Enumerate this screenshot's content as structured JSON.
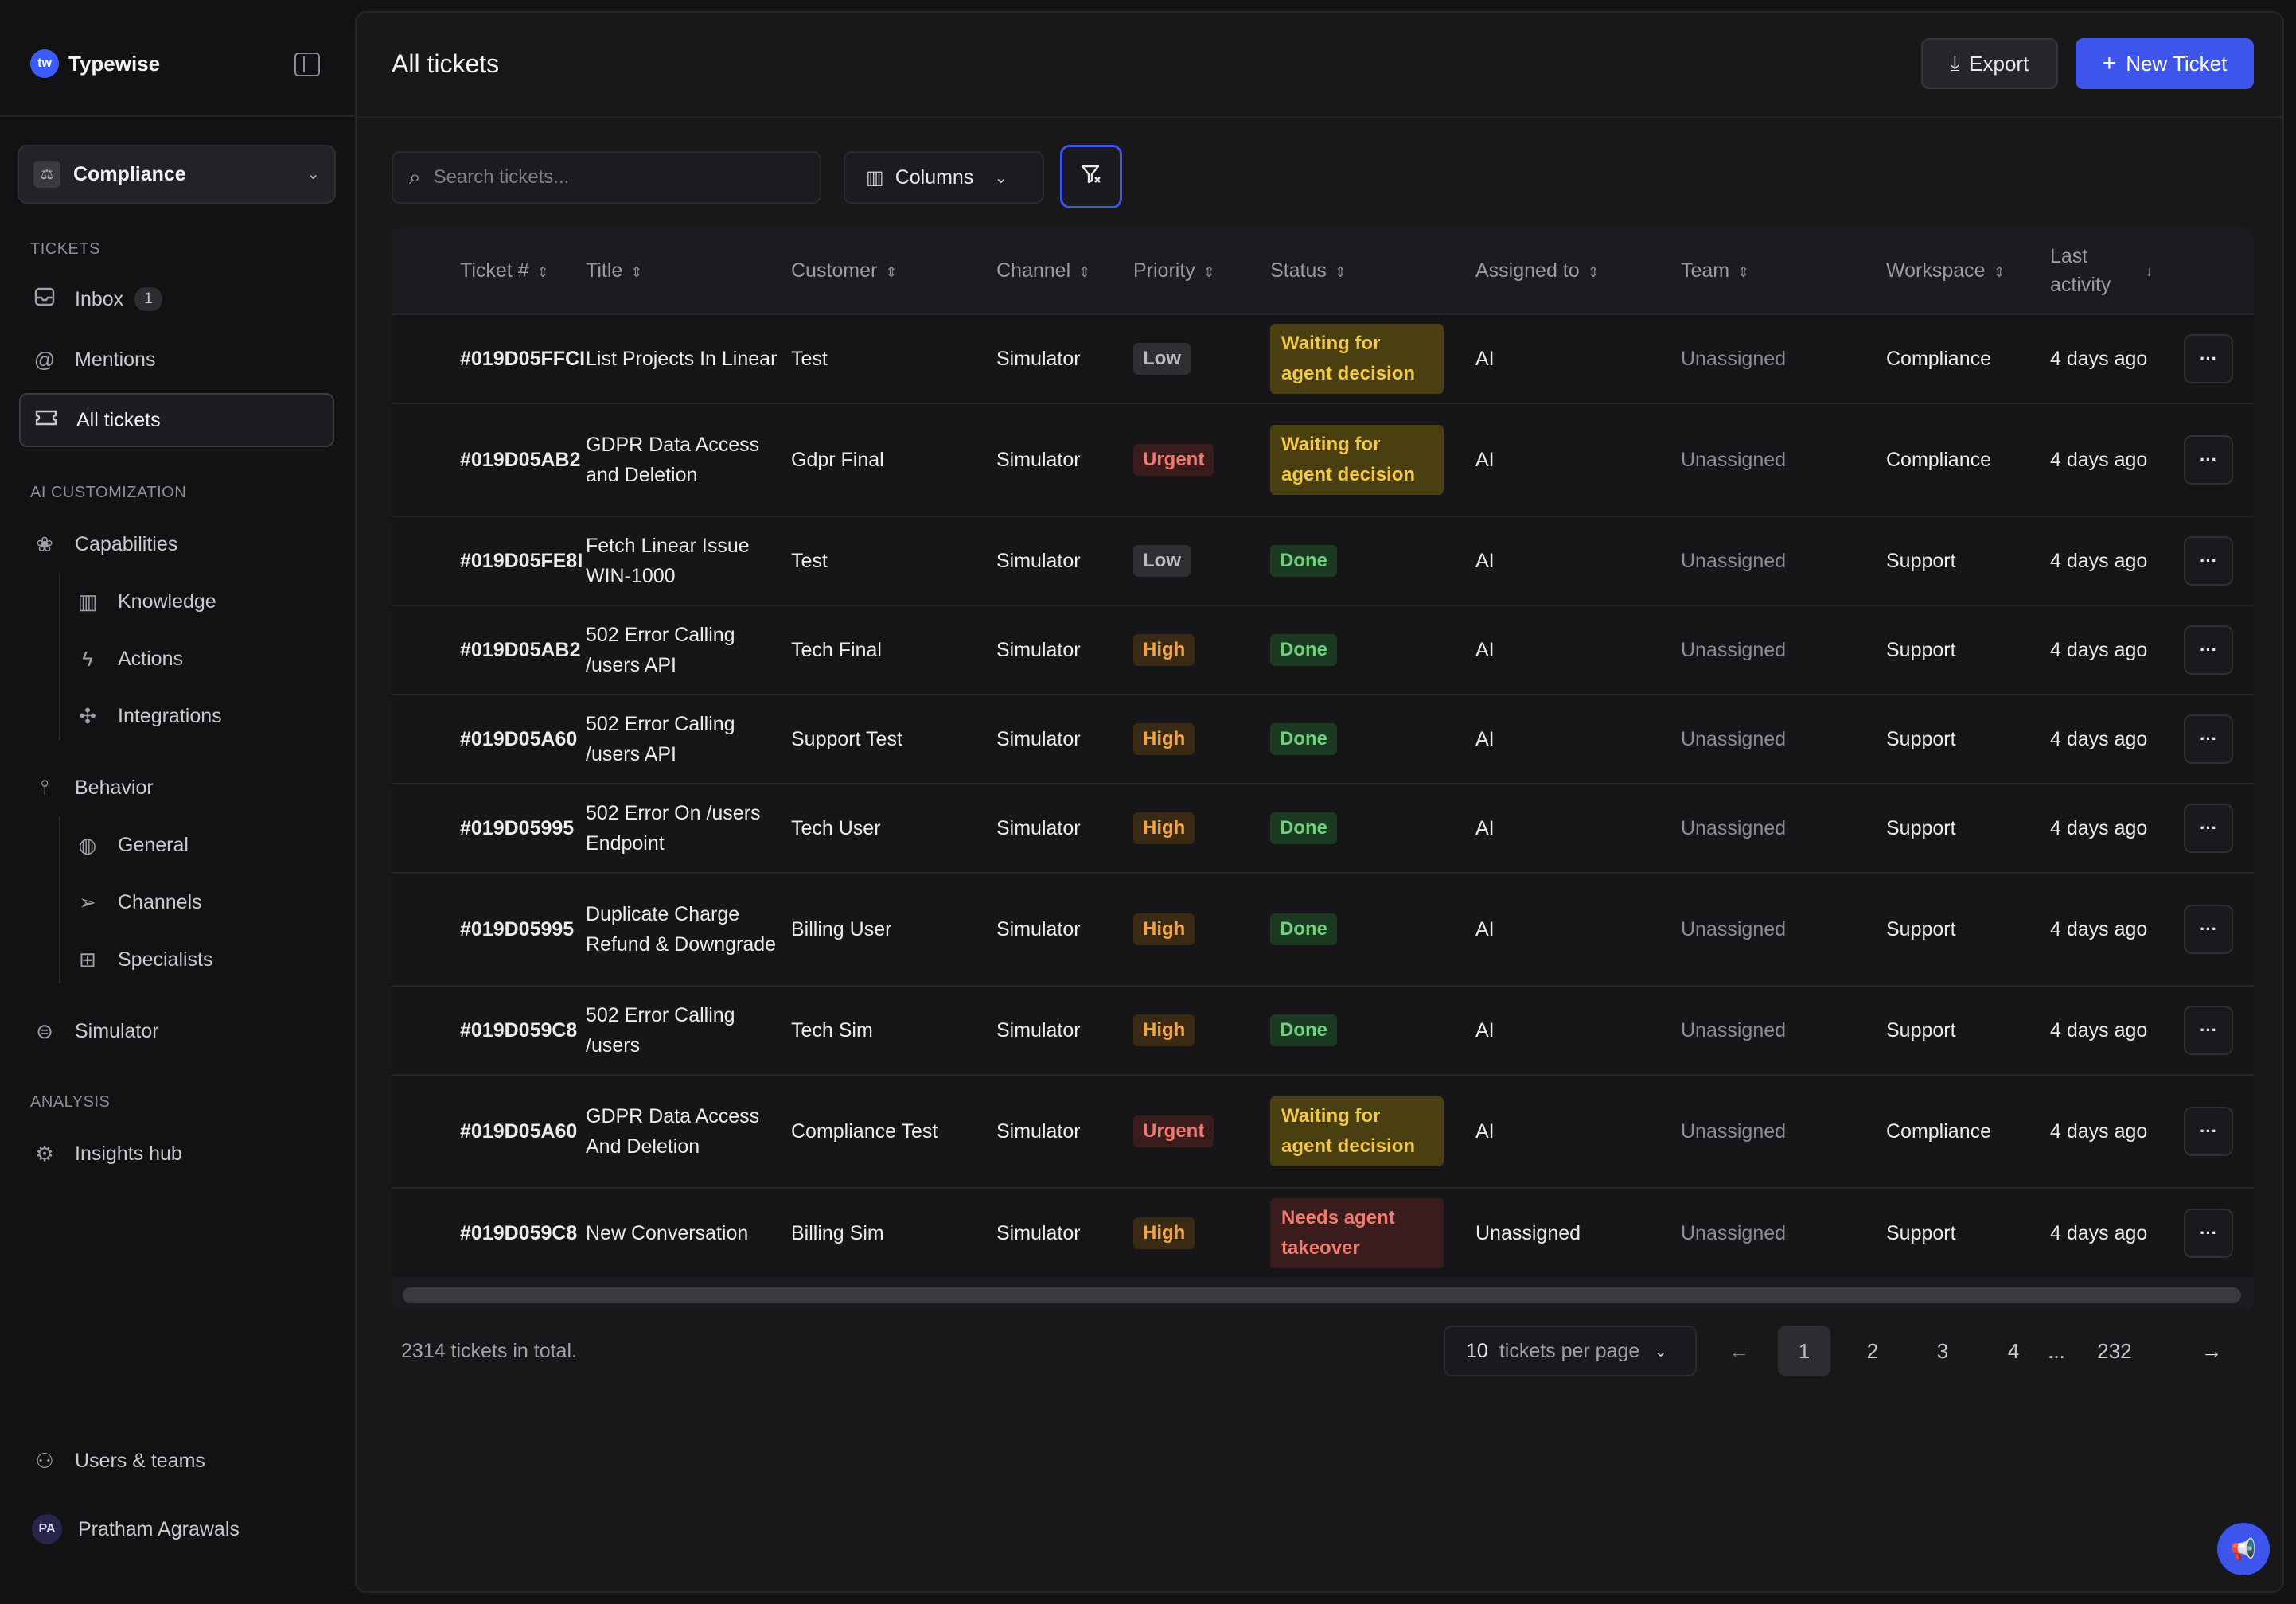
{
  "brand": {
    "name": "Typewise",
    "logo_text": "tw"
  },
  "workspace": {
    "label": "Compliance"
  },
  "sidebar": {
    "tickets_header": "TICKETS",
    "inbox": {
      "label": "Inbox",
      "count": "1"
    },
    "mentions": {
      "label": "Mentions"
    },
    "all_tickets": {
      "label": "All tickets"
    },
    "ai_header": "AI CUSTOMIZATION",
    "capabilities": {
      "label": "Capabilities"
    },
    "knowledge": {
      "label": "Knowledge"
    },
    "actions": {
      "label": "Actions"
    },
    "integrations": {
      "label": "Integrations"
    },
    "behavior": {
      "label": "Behavior"
    },
    "general": {
      "label": "General"
    },
    "channels": {
      "label": "Channels"
    },
    "specialists": {
      "label": "Specialists"
    },
    "simulator": {
      "label": "Simulator"
    },
    "analysis_header": "ANALYSIS",
    "insights": {
      "label": "Insights hub"
    },
    "users_teams": {
      "label": "Users & teams"
    },
    "user": {
      "initials": "PA",
      "name": "Pratham Agrawals"
    }
  },
  "header": {
    "title": "All tickets",
    "export_label": "Export",
    "new_ticket_label": "New Ticket"
  },
  "toolbar": {
    "search_placeholder": "Search tickets...",
    "columns_label": "Columns"
  },
  "table": {
    "headers": {
      "ticket": "Ticket #",
      "title": "Title",
      "customer": "Customer",
      "channel": "Channel",
      "priority": "Priority",
      "status": "Status",
      "assigned": "Assigned to",
      "team": "Team",
      "workspace": "Workspace",
      "last_activity": "Last activity"
    },
    "rows": [
      {
        "id": "#019D05FFCI",
        "title": "List Projects In Linear",
        "customer": "Test",
        "channel": "Simulator",
        "priority": "Low",
        "status": "Waiting for agent decision",
        "assigned": "AI",
        "team": "Unassigned",
        "workspace": "Compliance",
        "last": "4 days ago"
      },
      {
        "id": "#019D05AB2",
        "title": "GDPR Data Access and Deletion",
        "customer": "Gdpr Final",
        "channel": "Simulator",
        "priority": "Urgent",
        "status": "Waiting for agent decision",
        "assigned": "AI",
        "team": "Unassigned",
        "workspace": "Compliance",
        "last": "4 days ago"
      },
      {
        "id": "#019D05FE8I",
        "title": "Fetch Linear Issue WIN-1000",
        "customer": "Test",
        "channel": "Simulator",
        "priority": "Low",
        "status": "Done",
        "assigned": "AI",
        "team": "Unassigned",
        "workspace": "Support",
        "last": "4 days ago"
      },
      {
        "id": "#019D05AB2",
        "title": "502 Error Calling /users API",
        "customer": "Tech Final",
        "channel": "Simulator",
        "priority": "High",
        "status": "Done",
        "assigned": "AI",
        "team": "Unassigned",
        "workspace": "Support",
        "last": "4 days ago"
      },
      {
        "id": "#019D05A60",
        "title": "502 Error Calling /users API",
        "customer": "Support Test",
        "channel": "Simulator",
        "priority": "High",
        "status": "Done",
        "assigned": "AI",
        "team": "Unassigned",
        "workspace": "Support",
        "last": "4 days ago"
      },
      {
        "id": "#019D05995",
        "title": "502 Error On /users Endpoint",
        "customer": "Tech User",
        "channel": "Simulator",
        "priority": "High",
        "status": "Done",
        "assigned": "AI",
        "team": "Unassigned",
        "workspace": "Support",
        "last": "4 days ago"
      },
      {
        "id": "#019D05995",
        "title": "Duplicate Charge Refund & Downgrade",
        "customer": "Billing User",
        "channel": "Simulator",
        "priority": "High",
        "status": "Done",
        "assigned": "AI",
        "team": "Unassigned",
        "workspace": "Support",
        "last": "4 days ago"
      },
      {
        "id": "#019D059C8",
        "title": "502 Error Calling /users",
        "customer": "Tech Sim",
        "channel": "Simulator",
        "priority": "High",
        "status": "Done",
        "assigned": "AI",
        "team": "Unassigned",
        "workspace": "Support",
        "last": "4 days ago"
      },
      {
        "id": "#019D05A60",
        "title": "GDPR Data Access And Deletion",
        "customer": "Compliance Test",
        "channel": "Simulator",
        "priority": "Urgent",
        "status": "Waiting for agent decision",
        "assigned": "AI",
        "team": "Unassigned",
        "workspace": "Compliance",
        "last": "4 days ago"
      },
      {
        "id": "#019D059C8",
        "title": "New Conversation",
        "customer": "Billing Sim",
        "channel": "Simulator",
        "priority": "High",
        "status": "Needs agent takeover",
        "assigned": "Unassigned",
        "team": "Unassigned",
        "workspace": "Support",
        "last": "4 days ago"
      }
    ]
  },
  "footer": {
    "total": "2314 tickets in total.",
    "per_page_value": "10",
    "per_page_label": "tickets per page",
    "pages": [
      "1",
      "2",
      "3",
      "4"
    ],
    "ellipsis": "...",
    "last_page": "232",
    "current_page": "1"
  },
  "colors": {
    "accent": "#3d55ea",
    "background": "#121214",
    "panel": "#18181b"
  }
}
